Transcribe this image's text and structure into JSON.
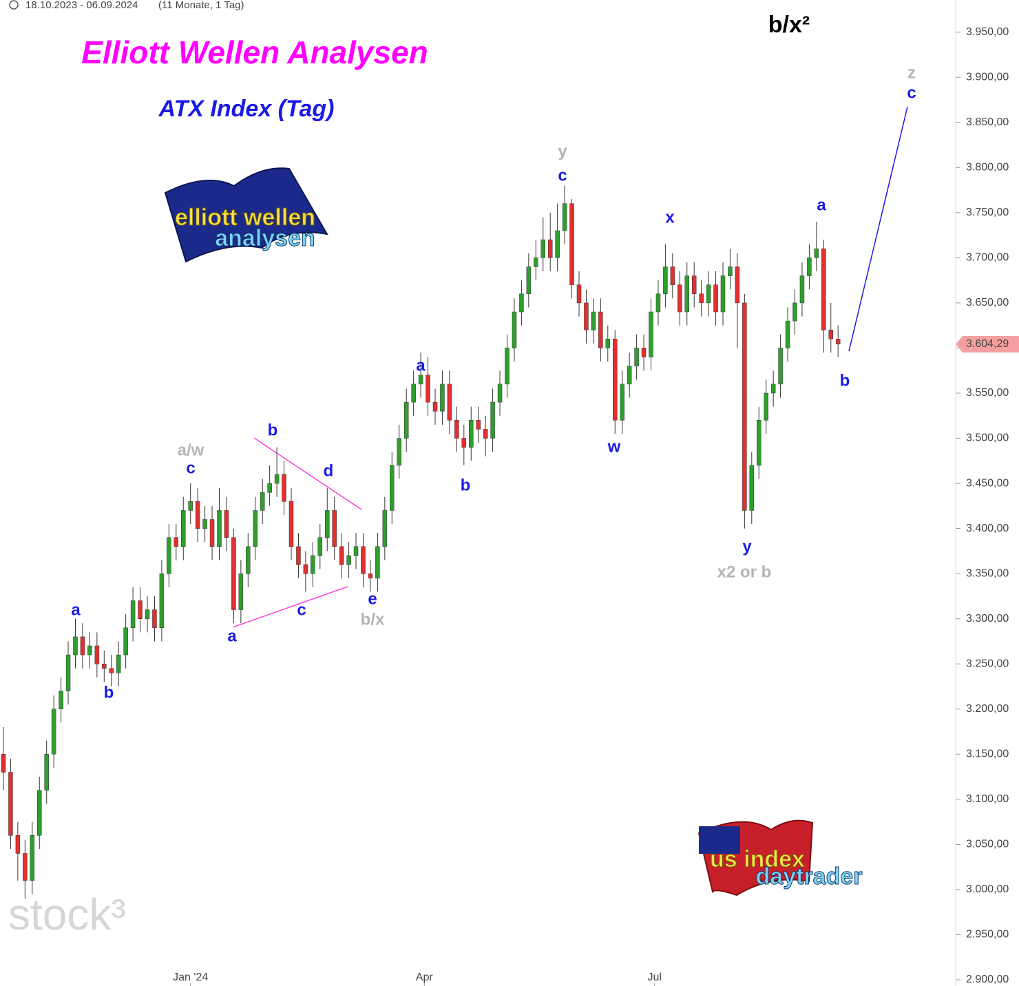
{
  "chart_data": {
    "type": "candlestick",
    "title": "Elliott Wellen Analysen",
    "subtitle": "ATX Index (Tag)",
    "date_range": "18.10.2023 - 06.09.2024",
    "range_info": "(11 Monate, 1 Tag)",
    "corner_note": "b/x²",
    "watermark": "stock³",
    "logo_left": [
      "elliott wellen",
      "analysen"
    ],
    "logo_right": [
      "us index",
      "daytrader"
    ],
    "open": [
      3150,
      3130,
      3060,
      3040,
      3010,
      3060,
      3110,
      3150,
      3200,
      3220,
      3260,
      3280,
      3260,
      3270,
      3250,
      3245,
      3240,
      3260,
      3290,
      3320,
      3300,
      3310,
      3290,
      3350,
      3390,
      3380,
      3420,
      3430,
      3400,
      3410,
      3380,
      3420,
      3390,
      3310,
      3350,
      3380,
      3420,
      3440,
      3450,
      3460,
      3430,
      3380,
      3360,
      3350,
      3370,
      3390,
      3420,
      3380,
      3360,
      3370,
      3380,
      3350,
      3345,
      3380,
      3420,
      3470,
      3500,
      3540,
      3560,
      3570,
      3540,
      3530,
      3560,
      3520,
      3500,
      3490,
      3520,
      3510,
      3500,
      3540,
      3560,
      3600,
      3640,
      3660,
      3690,
      3700,
      3720,
      3700,
      3730,
      3760,
      3670,
      3650,
      3620,
      3640,
      3600,
      3610,
      3520,
      3560,
      3580,
      3600,
      3590,
      3640,
      3660,
      3690,
      3670,
      3640,
      3680,
      3660,
      3650,
      3670,
      3640,
      3680,
      3690,
      3650,
      3420,
      3470,
      3520,
      3550,
      3560,
      3600,
      3630,
      3650,
      3680,
      3700,
      3710,
      3620,
      3610
    ],
    "high": [
      3180,
      3145,
      3075,
      3055,
      3075,
      3125,
      3165,
      3215,
      3235,
      3275,
      3300,
      3295,
      3285,
      3285,
      3265,
      3260,
      3275,
      3305,
      3335,
      3335,
      3325,
      3325,
      3365,
      3405,
      3405,
      3435,
      3450,
      3445,
      3425,
      3425,
      3445,
      3435,
      3400,
      3365,
      3395,
      3435,
      3455,
      3470,
      3490,
      3475,
      3445,
      3395,
      3375,
      3385,
      3405,
      3445,
      3435,
      3395,
      3385,
      3395,
      3395,
      3365,
      3395,
      3435,
      3485,
      3515,
      3555,
      3575,
      3595,
      3590,
      3555,
      3575,
      3575,
      3535,
      3515,
      3535,
      3535,
      3525,
      3555,
      3575,
      3615,
      3655,
      3675,
      3705,
      3720,
      3745,
      3750,
      3760,
      3780,
      3765,
      3685,
      3665,
      3655,
      3655,
      3625,
      3620,
      3575,
      3595,
      3615,
      3615,
      3655,
      3675,
      3715,
      3705,
      3685,
      3695,
      3695,
      3675,
      3685,
      3685,
      3695,
      3710,
      3705,
      3660,
      3485,
      3535,
      3565,
      3575,
      3615,
      3645,
      3665,
      3695,
      3715,
      3740,
      3720,
      3650,
      3625
    ],
    "low": [
      3110,
      3045,
      3010,
      2990,
      2995,
      3045,
      3095,
      3135,
      3185,
      3205,
      3245,
      3245,
      3245,
      3235,
      3230,
      3225,
      3225,
      3245,
      3275,
      3285,
      3285,
      3275,
      3275,
      3335,
      3365,
      3365,
      3405,
      3385,
      3385,
      3365,
      3365,
      3375,
      3295,
      3295,
      3335,
      3365,
      3405,
      3425,
      3435,
      3415,
      3365,
      3345,
      3330,
      3335,
      3355,
      3375,
      3365,
      3345,
      3345,
      3355,
      3335,
      3330,
      3330,
      3365,
      3405,
      3455,
      3485,
      3525,
      3545,
      3525,
      3515,
      3515,
      3505,
      3485,
      3470,
      3475,
      3495,
      3480,
      3485,
      3525,
      3545,
      3585,
      3625,
      3645,
      3675,
      3685,
      3685,
      3685,
      3715,
      3655,
      3635,
      3605,
      3605,
      3585,
      3585,
      3505,
      3505,
      3545,
      3565,
      3575,
      3575,
      3625,
      3645,
      3655,
      3625,
      3625,
      3645,
      3635,
      3635,
      3625,
      3625,
      3665,
      3600,
      3400,
      3405,
      3455,
      3505,
      3535,
      3545,
      3585,
      3615,
      3635,
      3665,
      3685,
      3595,
      3595,
      3590
    ],
    "close": [
      3130,
      3060,
      3040,
      3010,
      3060,
      3110,
      3150,
      3200,
      3220,
      3260,
      3280,
      3260,
      3270,
      3250,
      3245,
      3240,
      3260,
      3290,
      3320,
      3300,
      3310,
      3290,
      3350,
      3390,
      3380,
      3420,
      3430,
      3400,
      3410,
      3380,
      3420,
      3390,
      3310,
      3350,
      3380,
      3420,
      3440,
      3450,
      3460,
      3430,
      3380,
      3360,
      3350,
      3370,
      3390,
      3420,
      3380,
      3360,
      3370,
      3380,
      3350,
      3345,
      3380,
      3420,
      3470,
      3500,
      3540,
      3560,
      3570,
      3540,
      3530,
      3560,
      3520,
      3500,
      3490,
      3520,
      3510,
      3500,
      3540,
      3560,
      3600,
      3640,
      3660,
      3690,
      3700,
      3720,
      3700,
      3730,
      3760,
      3670,
      3650,
      3620,
      3640,
      3600,
      3610,
      3520,
      3560,
      3580,
      3600,
      3590,
      3640,
      3660,
      3690,
      3670,
      3640,
      3680,
      3660,
      3650,
      3670,
      3640,
      3680,
      3690,
      3650,
      3420,
      3470,
      3520,
      3550,
      3560,
      3600,
      3630,
      3650,
      3680,
      3700,
      3710,
      3620,
      3610,
      3604.29
    ],
    "last_price_label": "3.604,29",
    "up_color": "#2e9e2e",
    "down_color": "#e03030",
    "ylim": [
      2900,
      3965
    ],
    "yticks": [
      {
        "value": 2900,
        "label": "2.900,00"
      },
      {
        "value": 2950,
        "label": "2.950,00"
      },
      {
        "value": 3000,
        "label": "3.000,00"
      },
      {
        "value": 3050,
        "label": "3.050,00"
      },
      {
        "value": 3100,
        "label": "3.100,00"
      },
      {
        "value": 3150,
        "label": "3.150,00"
      },
      {
        "value": 3200,
        "label": "3.200,00"
      },
      {
        "value": 3250,
        "label": "3.250,00"
      },
      {
        "value": 3300,
        "label": "3.300,00"
      },
      {
        "value": 3350,
        "label": "3.350,00"
      },
      {
        "value": 3400,
        "label": "3.400,00"
      },
      {
        "value": 3450,
        "label": "3.450,00"
      },
      {
        "value": 3500,
        "label": "3.500,00"
      },
      {
        "value": 3550,
        "label": "3.550,00"
      },
      {
        "value": 3600,
        "label": "3.600,00"
      },
      {
        "value": 3650,
        "label": "3.650,00"
      },
      {
        "value": 3700,
        "label": "3.700,00"
      },
      {
        "value": 3750,
        "label": "3.750,00"
      },
      {
        "value": 3800,
        "label": "3.800,00"
      },
      {
        "value": 3850,
        "label": "3.850,00"
      },
      {
        "value": 3900,
        "label": "3.900,00"
      },
      {
        "value": 3950,
        "label": "3.950,00"
      }
    ],
    "xticks": [
      {
        "value": 26,
        "label": "Jan '24"
      },
      {
        "value": 58.5,
        "label": "Apr"
      },
      {
        "value": 90.5,
        "label": "Jul"
      }
    ],
    "wave_labels": [
      {
        "text": "a",
        "color": "#1a1ae6"
      },
      {
        "text": "b",
        "color": "#1a1ae6"
      },
      {
        "text": "c",
        "color": "#1a1ae6"
      },
      {
        "text": "a/w",
        "color": "#b4b4b4"
      },
      {
        "text": "a",
        "color": "#1a1ae6"
      },
      {
        "text": "b",
        "color": "#1a1ae6"
      },
      {
        "text": "c",
        "color": "#1a1ae6"
      },
      {
        "text": "d",
        "color": "#1a1ae6"
      },
      {
        "text": "e",
        "color": "#1a1ae6"
      },
      {
        "text": "b/x",
        "color": "#b4b4b4"
      },
      {
        "text": "a",
        "color": "#1a1ae6"
      },
      {
        "text": "b",
        "color": "#1a1ae6"
      },
      {
        "text": "c",
        "color": "#1a1ae6"
      },
      {
        "text": "y",
        "color": "#b4b4b4"
      },
      {
        "text": "w",
        "color": "#1a1ae6"
      },
      {
        "text": "x",
        "color": "#1a1ae6"
      },
      {
        "text": "y",
        "color": "#1a1ae6"
      },
      {
        "text": "x2 or b",
        "color": "#b4b4b4"
      },
      {
        "text": "a",
        "color": "#1a1ae6"
      },
      {
        "text": "b",
        "color": "#1a1ae6"
      },
      {
        "text": "c",
        "color": "#1a1ae6"
      },
      {
        "text": "z",
        "color": "#b4b4b4"
      }
    ]
  }
}
